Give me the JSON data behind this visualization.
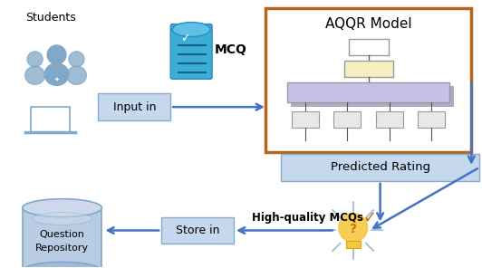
{
  "fig_width": 5.32,
  "fig_height": 2.96,
  "dpi": 100,
  "background_color": "#ffffff",
  "students_label": "Students",
  "students_color": "#7fa8c9",
  "mcq_label": "MCQ",
  "input_label": "Input in",
  "aqqr_label": "AQQR Model",
  "pred_label": "Predicted Rating",
  "store_label": "Store in",
  "repo_label_line1": "Question",
  "repo_label_line2": "Repository",
  "hq_label": "High-quality MCQs",
  "box_color": "#c5d8ee",
  "box_edge": "#8aaac8",
  "aqqr_border": "#b5651d",
  "arrow_color": "#4472c4",
  "arrow_dark": "#4472c4",
  "nn_purple": "#c8bfe7",
  "nn_yellow": "#f5f0c0",
  "nn_gray": "#e0e0e0",
  "bulb_color": "#f5c842",
  "bulb_q_color": "#cc7700",
  "bulb_ray_color": "#9ab8d8",
  "check_color": "#cc6600"
}
